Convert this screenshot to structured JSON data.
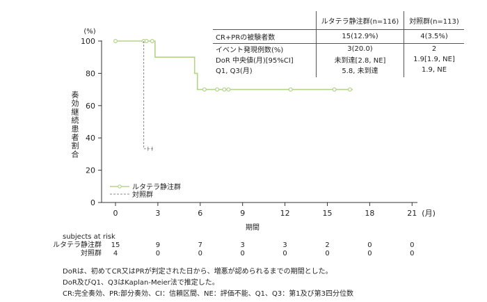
{
  "chart_data": {
    "type": "line",
    "ylabel": "奏効継続患者割合",
    "yunit": "(%)",
    "xlabel": "期間",
    "xunit": "(月)",
    "xlim": [
      0,
      21
    ],
    "ylim": [
      0,
      100
    ],
    "xticks": [
      0,
      3,
      6,
      9,
      12,
      15,
      18,
      21
    ],
    "yticks": [
      0,
      20,
      40,
      60,
      80,
      100
    ],
    "grid": false,
    "legend_position": "bottom-left",
    "series": [
      {
        "name": "ルタテラ静注群",
        "color": "#b5d28a",
        "style": "solid",
        "steps": [
          [
            0,
            100
          ],
          [
            2.8,
            100
          ],
          [
            2.8,
            90
          ],
          [
            5.6,
            90
          ],
          [
            5.6,
            80
          ],
          [
            5.8,
            80
          ],
          [
            5.8,
            70
          ],
          [
            16.8,
            70
          ]
        ],
        "censored": [
          [
            0,
            100
          ],
          [
            2,
            100
          ],
          [
            2.2,
            100
          ],
          [
            2.6,
            100
          ],
          [
            6.3,
            70
          ],
          [
            7.2,
            70
          ],
          [
            7.7,
            70
          ],
          [
            8.0,
            70
          ],
          [
            12.4,
            70
          ],
          [
            15.5,
            70
          ],
          [
            16.6,
            70
          ]
        ]
      },
      {
        "name": "対照群",
        "color": "#888888",
        "style": "dashed",
        "steps": [
          [
            2,
            100
          ],
          [
            2,
            33.3
          ],
          [
            2.7,
            33.3
          ]
        ],
        "censored": [
          [
            2.3,
            33.3
          ],
          [
            2.6,
            33.3
          ]
        ]
      }
    ]
  },
  "summary_table": {
    "col1": "ルタテラ静注群(n=116)",
    "col2": "対照群(n=113)",
    "cr_label": "CR+PRの被験者数",
    "cr_1": "15(12.9%)",
    "cr_2": "4(3.5%)",
    "ev_label": "イベント発現例数(%)",
    "ev_1": "3(20.0)",
    "ev_2": "2",
    "dor_label": "DoR 中央値(月)[95%CI]",
    "dor_1": "未到達[2.8, NE]",
    "dor_2": "1.9[1.9, NE]",
    "q_label": "Q1, Q3(月)",
    "q_1": "5.8, 未到達",
    "q_2": "1.9, NE"
  },
  "risk": {
    "header": "subjects at risk",
    "rows": [
      {
        "label": "ルタテラ静注群",
        "values": [
          "15",
          "9",
          "7",
          "3",
          "3",
          "2",
          "0",
          "0"
        ]
      },
      {
        "label": "対照群",
        "values": [
          "4",
          "0",
          "0",
          "0",
          "0",
          "0",
          "0",
          "0"
        ]
      }
    ]
  },
  "footnotes": [
    "DoRは、初めてCR又はPRが判定された日から、増悪が認められるまでの期間とした。",
    "DoR及びQ1、Q3はKaplan-Meier法で推定した。",
    "CR:完全奏効、PR:部分奏効、CI：信頼区間、NE：評価不能、Q1、Q3：第1及び第3四分位数"
  ]
}
